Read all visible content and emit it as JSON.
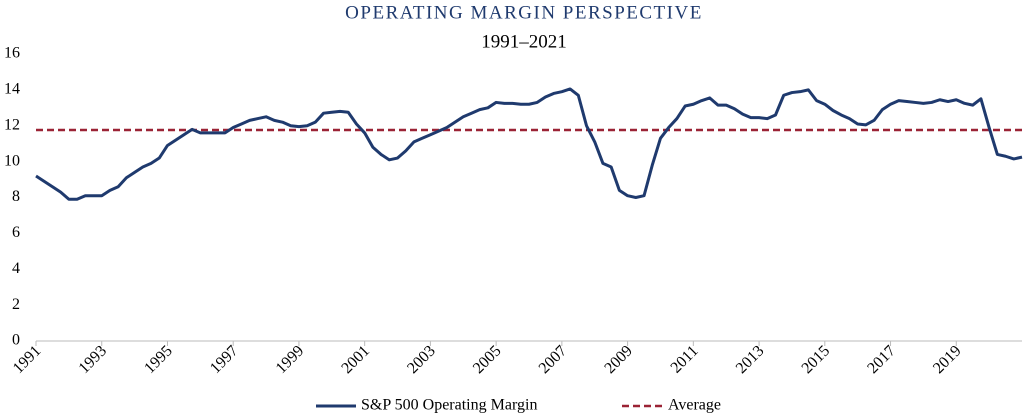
{
  "chart_data": {
    "type": "line",
    "title": "OPERATING MARGIN PERSPECTIVE",
    "subtitle": "1991–2021",
    "x": [
      1991,
      1991.25,
      1991.5,
      1991.75,
      1992,
      1992.25,
      1992.5,
      1992.75,
      1993,
      1993.25,
      1993.5,
      1993.75,
      1994,
      1994.25,
      1994.5,
      1994.75,
      1995,
      1995.25,
      1995.5,
      1995.75,
      1996,
      1996.25,
      1996.5,
      1996.75,
      1997,
      1997.25,
      1997.5,
      1997.75,
      1998,
      1998.25,
      1998.5,
      1998.75,
      1999,
      1999.25,
      1999.5,
      1999.75,
      2000,
      2000.25,
      2000.5,
      2000.75,
      2001,
      2001.25,
      2001.5,
      2001.75,
      2002,
      2002.25,
      2002.5,
      2002.75,
      2003,
      2003.25,
      2003.5,
      2003.75,
      2004,
      2004.25,
      2004.5,
      2004.75,
      2005,
      2005.25,
      2005.5,
      2005.75,
      2006,
      2006.25,
      2006.5,
      2006.75,
      2007,
      2007.25,
      2007.5,
      2007.75,
      2008,
      2008.25,
      2008.5,
      2008.75,
      2009,
      2009.25,
      2009.5,
      2009.75,
      2010,
      2010.25,
      2010.5,
      2010.75,
      2011,
      2011.25,
      2011.5,
      2011.75,
      2012,
      2012.25,
      2012.5,
      2012.75,
      2013,
      2013.25,
      2013.5,
      2013.75,
      2014,
      2014.25,
      2014.5,
      2014.75,
      2015,
      2015.25,
      2015.5,
      2015.75,
      2016,
      2016.25,
      2016.5,
      2016.75,
      2017,
      2017.25,
      2017.5,
      2017.75,
      2018,
      2018.25,
      2018.5,
      2018.75,
      2019,
      2019.25,
      2019.5,
      2019.75,
      2020,
      2020.25,
      2020.5,
      2020.75,
      2021
    ],
    "series": [
      {
        "name": "S&P 500 Operating Margin",
        "color": "#1f3a6e",
        "values": [
          9.2,
          8.9,
          8.6,
          8.3,
          7.9,
          7.9,
          8.1,
          8.1,
          8.1,
          8.4,
          8.6,
          9.1,
          9.4,
          9.7,
          9.9,
          10.2,
          10.9,
          11.2,
          11.5,
          11.8,
          11.6,
          11.6,
          11.6,
          11.6,
          11.9,
          12.1,
          12.3,
          12.4,
          12.5,
          12.3,
          12.2,
          12.0,
          11.95,
          12.0,
          12.2,
          12.7,
          12.75,
          12.8,
          12.75,
          12.1,
          11.6,
          10.8,
          10.4,
          10.1,
          10.2,
          10.6,
          11.1,
          11.3,
          11.5,
          11.7,
          11.9,
          12.2,
          12.5,
          12.7,
          12.9,
          13.0,
          13.3,
          13.25,
          13.25,
          13.2,
          13.2,
          13.3,
          13.6,
          13.8,
          13.9,
          14.05,
          13.7,
          12.0,
          11.1,
          9.9,
          9.7,
          8.4,
          8.1,
          8.0,
          8.1,
          9.8,
          11.3,
          11.9,
          12.4,
          13.1,
          13.2,
          13.4,
          13.55,
          13.15,
          13.15,
          12.95,
          12.65,
          12.45,
          12.45,
          12.4,
          12.6,
          13.7,
          13.85,
          13.9,
          14.0,
          13.4,
          13.2,
          12.85,
          12.6,
          12.4,
          12.1,
          12.05,
          12.3,
          12.9,
          13.2,
          13.4,
          13.35,
          13.3,
          13.25,
          13.3,
          13.45,
          13.35,
          13.45,
          13.25,
          13.15,
          13.5,
          11.9,
          10.4,
          10.3,
          10.15,
          10.25
        ]
      }
    ],
    "average": {
      "name": "Average",
      "value": 11.76,
      "color": "#9b2335"
    },
    "xlim": [
      1991,
      2021
    ],
    "xticks": [
      1991,
      1993,
      1995,
      1997,
      1999,
      2001,
      2003,
      2005,
      2007,
      2009,
      2011,
      2013,
      2015,
      2017,
      2019
    ],
    "ylim": [
      0,
      16
    ],
    "yticks": [
      0,
      2,
      4,
      6,
      8,
      10,
      12,
      14,
      16
    ],
    "grid": false
  }
}
